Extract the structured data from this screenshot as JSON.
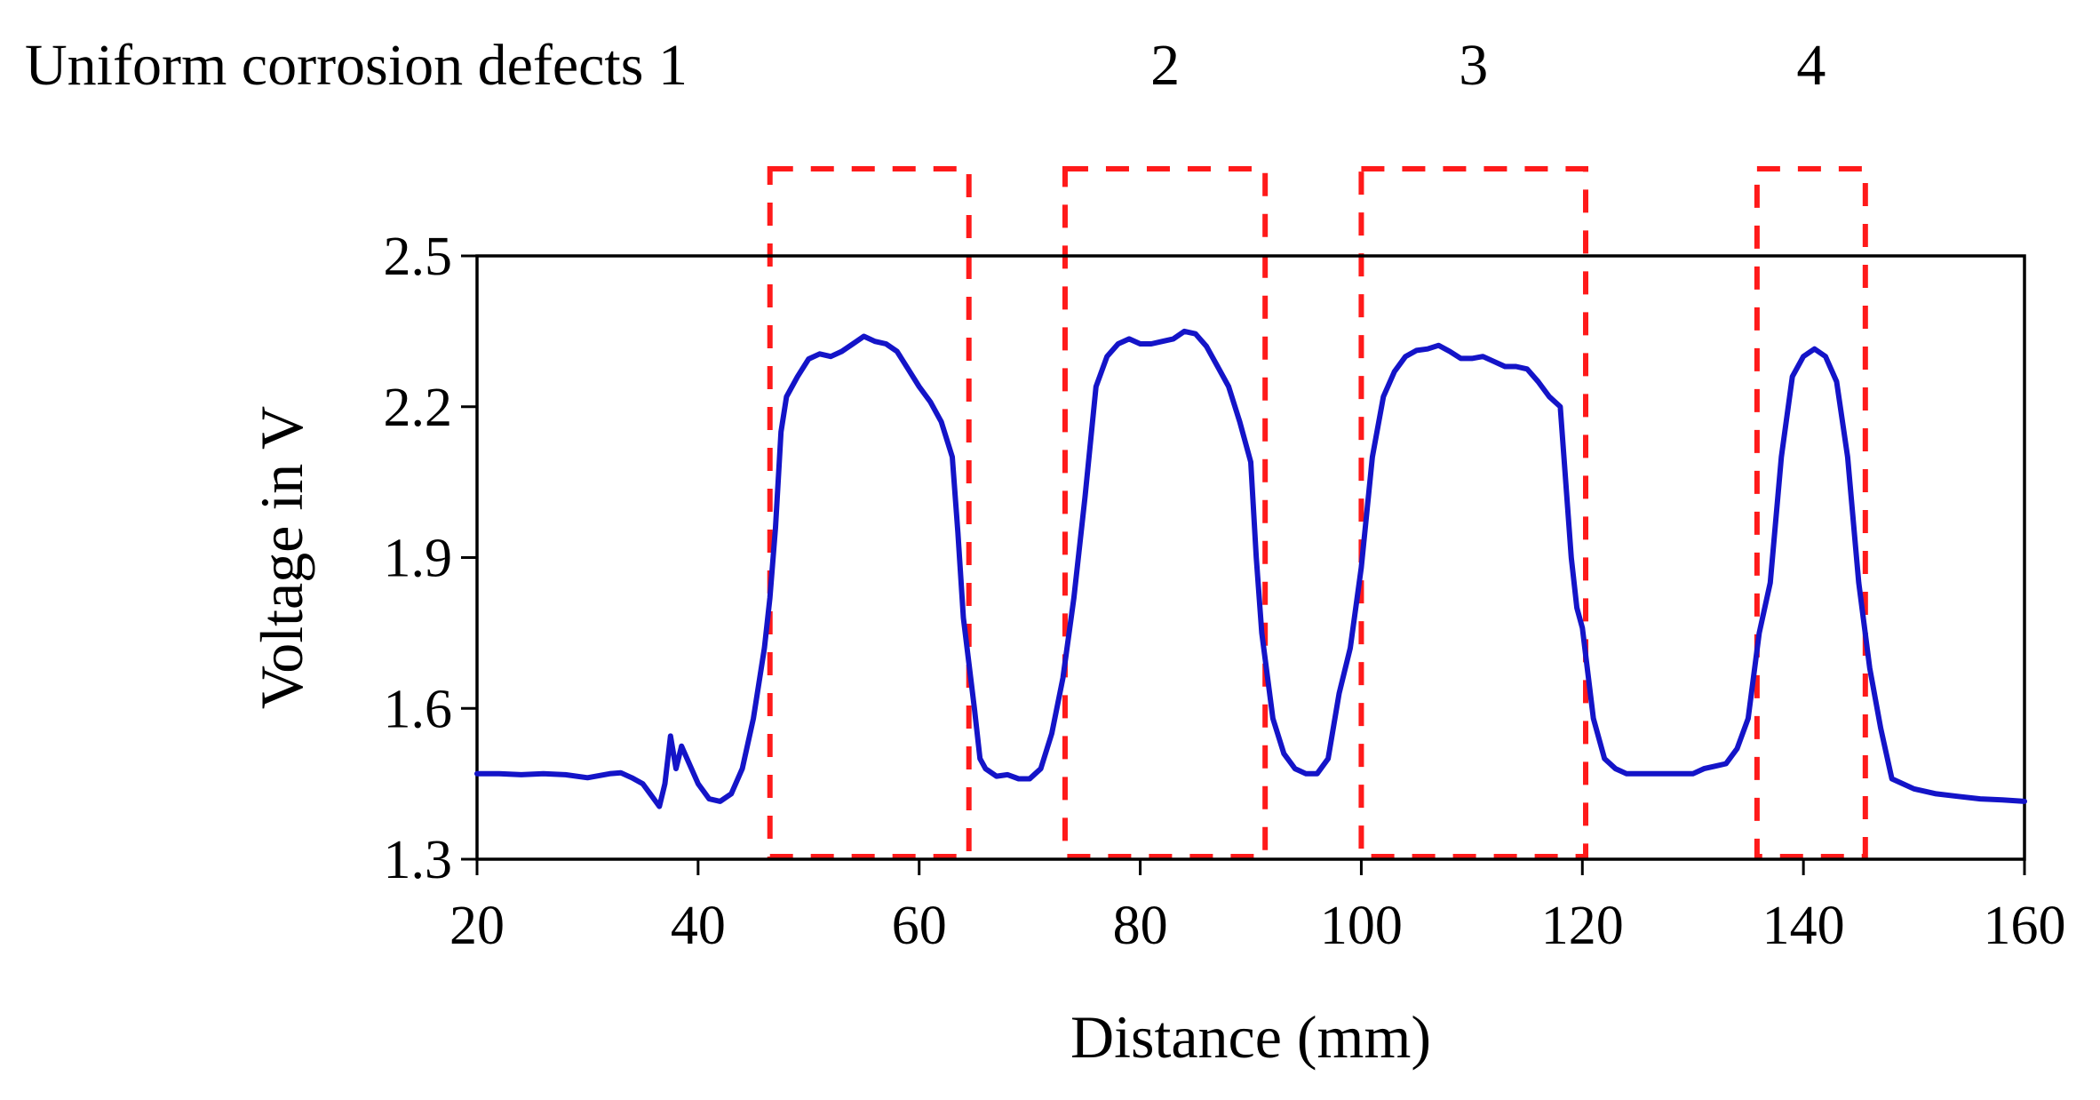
{
  "chart_data": {
    "type": "line",
    "header": "Uniform corrosion defects 1",
    "defect_labels": [
      "2",
      "3",
      "4"
    ],
    "xlabel": "Distance (mm)",
    "ylabel": "Voltage in V",
    "xlim": [
      20,
      160
    ],
    "ylim": [
      1.3,
      2.5
    ],
    "x_ticks": [
      "20",
      "40",
      "60",
      "80",
      "100",
      "120",
      "140",
      "160"
    ],
    "y_ticks": [
      "1.3",
      "1.6",
      "1.9",
      "2.2",
      "2.5"
    ],
    "colors": {
      "line": "#1414c8",
      "defect_box": "#ff1a1a"
    },
    "defect_regions": [
      {
        "label": "1",
        "x_start": 46.5,
        "x_end": 64.5
      },
      {
        "label": "2",
        "x_start": 73.2,
        "x_end": 91.3
      },
      {
        "label": "3",
        "x_start": 100.0,
        "x_end": 120.3
      },
      {
        "label": "4",
        "x_start": 135.8,
        "x_end": 145.6
      }
    ],
    "series": [
      {
        "name": "Voltage",
        "points": [
          [
            20,
            1.47
          ],
          [
            22,
            1.47
          ],
          [
            24,
            1.468
          ],
          [
            26,
            1.47
          ],
          [
            28,
            1.468
          ],
          [
            30,
            1.462
          ],
          [
            32,
            1.47
          ],
          [
            33,
            1.472
          ],
          [
            34,
            1.462
          ],
          [
            35,
            1.45
          ],
          [
            36,
            1.42
          ],
          [
            36.5,
            1.405
          ],
          [
            37,
            1.45
          ],
          [
            37.5,
            1.545
          ],
          [
            38,
            1.48
          ],
          [
            38.5,
            1.525
          ],
          [
            39,
            1.5
          ],
          [
            40,
            1.45
          ],
          [
            41,
            1.42
          ],
          [
            42,
            1.415
          ],
          [
            43,
            1.43
          ],
          [
            44,
            1.48
          ],
          [
            45,
            1.58
          ],
          [
            46,
            1.72
          ],
          [
            46.5,
            1.82
          ],
          [
            47,
            1.96
          ],
          [
            47.5,
            2.15
          ],
          [
            48,
            2.22
          ],
          [
            49,
            2.26
          ],
          [
            50,
            2.295
          ],
          [
            51,
            2.305
          ],
          [
            52,
            2.3
          ],
          [
            53,
            2.31
          ],
          [
            54,
            2.325
          ],
          [
            55,
            2.34
          ],
          [
            56,
            2.33
          ],
          [
            57,
            2.325
          ],
          [
            58,
            2.31
          ],
          [
            59,
            2.275
          ],
          [
            60,
            2.24
          ],
          [
            61,
            2.21
          ],
          [
            62,
            2.17
          ],
          [
            63,
            2.1
          ],
          [
            63.5,
            1.95
          ],
          [
            64,
            1.78
          ],
          [
            65,
            1.6
          ],
          [
            65.5,
            1.5
          ],
          [
            66,
            1.48
          ],
          [
            67,
            1.465
          ],
          [
            68,
            1.468
          ],
          [
            69,
            1.46
          ],
          [
            70,
            1.46
          ],
          [
            71,
            1.48
          ],
          [
            72,
            1.55
          ],
          [
            73,
            1.66
          ],
          [
            74,
            1.82
          ],
          [
            75,
            2.02
          ],
          [
            76,
            2.24
          ],
          [
            77,
            2.3
          ],
          [
            78,
            2.325
          ],
          [
            79,
            2.335
          ],
          [
            80,
            2.325
          ],
          [
            81,
            2.325
          ],
          [
            82,
            2.33
          ],
          [
            83,
            2.335
          ],
          [
            84,
            2.35
          ],
          [
            85,
            2.345
          ],
          [
            86,
            2.32
          ],
          [
            87,
            2.28
          ],
          [
            88,
            2.24
          ],
          [
            89,
            2.17
          ],
          [
            90,
            2.09
          ],
          [
            90.5,
            1.9
          ],
          [
            91,
            1.75
          ],
          [
            92,
            1.58
          ],
          [
            93,
            1.51
          ],
          [
            94,
            1.48
          ],
          [
            95,
            1.47
          ],
          [
            96,
            1.47
          ],
          [
            97,
            1.5
          ],
          [
            98,
            1.63
          ],
          [
            99,
            1.72
          ],
          [
            100,
            1.88
          ],
          [
            101,
            2.1
          ],
          [
            102,
            2.22
          ],
          [
            103,
            2.27
          ],
          [
            104,
            2.3
          ],
          [
            105,
            2.312
          ],
          [
            106,
            2.315
          ],
          [
            107,
            2.322
          ],
          [
            108,
            2.31
          ],
          [
            109,
            2.296
          ],
          [
            110,
            2.296
          ],
          [
            111,
            2.3
          ],
          [
            112,
            2.29
          ],
          [
            113,
            2.28
          ],
          [
            114,
            2.28
          ],
          [
            115,
            2.275
          ],
          [
            116,
            2.25
          ],
          [
            117,
            2.22
          ],
          [
            118,
            2.2
          ],
          [
            119,
            1.9
          ],
          [
            119.5,
            1.8
          ],
          [
            120,
            1.76
          ],
          [
            121,
            1.58
          ],
          [
            122,
            1.5
          ],
          [
            123,
            1.48
          ],
          [
            124,
            1.47
          ],
          [
            126,
            1.47
          ],
          [
            128,
            1.47
          ],
          [
            130,
            1.47
          ],
          [
            131,
            1.48
          ],
          [
            132,
            1.485
          ],
          [
            133,
            1.49
          ],
          [
            134,
            1.52
          ],
          [
            135,
            1.58
          ],
          [
            136,
            1.75
          ],
          [
            137,
            1.85
          ],
          [
            138,
            2.1
          ],
          [
            139,
            2.26
          ],
          [
            140,
            2.3
          ],
          [
            141,
            2.315
          ],
          [
            142,
            2.3
          ],
          [
            143,
            2.25
          ],
          [
            144,
            2.1
          ],
          [
            145,
            1.85
          ],
          [
            146,
            1.68
          ],
          [
            147,
            1.56
          ],
          [
            148,
            1.46
          ],
          [
            150,
            1.44
          ],
          [
            152,
            1.43
          ],
          [
            154,
            1.425
          ],
          [
            156,
            1.42
          ],
          [
            158,
            1.418
          ],
          [
            160,
            1.415
          ]
        ]
      }
    ]
  }
}
